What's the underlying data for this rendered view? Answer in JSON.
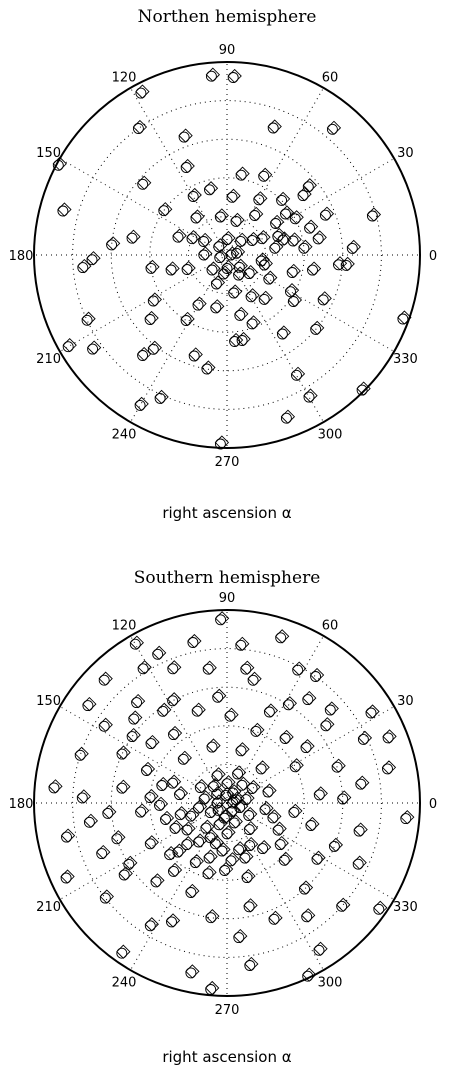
{
  "charts": [
    {
      "title": "Northen hemisphere",
      "xlabel": "right ascension α",
      "angle_labels": [
        "0",
        "30",
        "60",
        "90",
        "120",
        "150",
        "180",
        "210",
        "240",
        "270",
        "300",
        "330"
      ]
    },
    {
      "title": "Southern hemisphere",
      "xlabel": "right ascension α",
      "angle_labels": [
        "0",
        "30",
        "60",
        "90",
        "120",
        "150",
        "180",
        "210",
        "240",
        "270",
        "300",
        "330"
      ]
    }
  ],
  "chart_data": [
    {
      "type": "scatter",
      "title": "Northen hemisphere",
      "xlabel": "right ascension α",
      "angular_axis": {
        "unit": "degrees",
        "ticks": [
          0,
          30,
          60,
          90,
          120,
          150,
          180,
          210,
          240,
          270,
          300,
          330
        ]
      },
      "radial_grid": 5,
      "markers": [
        "circle",
        "diamond"
      ],
      "grid": true,
      "points": [
        [
          0,
          0.02
        ],
        [
          10,
          0.05
        ],
        [
          200,
          0.04
        ],
        [
          90,
          0.08
        ],
        [
          270,
          0.07
        ],
        [
          135,
          0.06
        ],
        [
          315,
          0.09
        ],
        [
          45,
          0.1
        ],
        [
          180,
          0.12
        ],
        [
          225,
          0.11
        ],
        [
          30,
          0.15
        ],
        [
          150,
          0.14
        ],
        [
          250,
          0.16
        ],
        [
          350,
          0.18
        ],
        [
          100,
          0.2
        ],
        [
          200,
          0.22
        ],
        [
          300,
          0.25
        ],
        [
          20,
          0.28
        ],
        [
          160,
          0.27
        ],
        [
          240,
          0.3
        ],
        [
          60,
          0.33
        ],
        [
          120,
          0.35
        ],
        [
          330,
          0.38
        ],
        [
          190,
          0.4
        ],
        [
          80,
          0.42
        ],
        [
          280,
          0.45
        ],
        [
          10,
          0.48
        ],
        [
          170,
          0.5
        ],
        [
          220,
          0.52
        ],
        [
          40,
          0.55
        ],
        [
          140,
          0.57
        ],
        [
          260,
          0.6
        ],
        [
          355,
          0.62
        ],
        [
          110,
          0.65
        ],
        [
          230,
          0.68
        ],
        [
          70,
          0.7
        ],
        [
          300,
          0.72
        ],
        [
          185,
          0.75
        ],
        [
          15,
          0.78
        ],
        [
          125,
          0.8
        ],
        [
          245,
          0.82
        ],
        [
          50,
          0.85
        ],
        [
          165,
          0.88
        ],
        [
          290,
          0.9
        ],
        [
          95,
          0.93
        ],
        [
          210,
          0.95
        ],
        [
          340,
          0.97
        ],
        [
          152,
          0.99
        ],
        [
          118,
          0.95
        ],
        [
          88,
          0.92
        ],
        [
          315,
          0.99
        ],
        [
          268,
          0.98
        ],
        [
          240,
          0.9
        ],
        [
          300,
          0.85
        ],
        [
          355,
          0.58
        ],
        [
          5,
          0.4
        ],
        [
          175,
          0.6
        ],
        [
          182,
          0.7
        ],
        [
          205,
          0.8
        ],
        [
          215,
          0.85
        ],
        [
          232,
          0.62
        ],
        [
          252,
          0.55
        ],
        [
          275,
          0.45
        ],
        [
          290,
          0.38
        ],
        [
          310,
          0.3
        ],
        [
          325,
          0.42
        ],
        [
          345,
          0.35
        ],
        [
          15,
          0.3
        ],
        [
          25,
          0.2
        ],
        [
          35,
          0.37
        ],
        [
          55,
          0.25
        ],
        [
          65,
          0.45
        ],
        [
          75,
          0.18
        ],
        [
          85,
          0.3
        ],
        [
          105,
          0.35
        ],
        [
          115,
          0.5
        ],
        [
          130,
          0.25
        ],
        [
          145,
          0.4
        ],
        [
          155,
          0.2
        ],
        [
          195,
          0.3
        ],
        [
          212,
          0.45
        ],
        [
          238,
          0.4
        ],
        [
          258,
          0.28
        ],
        [
          282,
          0.32
        ],
        [
          305,
          0.5
        ],
        [
          320,
          0.6
        ],
        [
          335,
          0.55
        ],
        [
          350,
          0.45
        ],
        [
          3,
          0.65
        ],
        [
          8,
          0.25
        ],
        [
          12,
          0.35
        ],
        [
          18,
          0.45
        ],
        [
          22,
          0.55
        ],
        [
          28,
          0.4
        ],
        [
          33,
          0.3
        ],
        [
          345,
          0.2
        ],
        [
          330,
          0.25
        ],
        [
          320,
          0.15
        ],
        [
          300,
          0.12
        ],
        [
          280,
          0.2
        ],
        [
          260,
          0.1
        ],
        [
          45,
          0.4
        ],
        [
          38,
          0.5
        ]
      ]
    },
    {
      "type": "scatter",
      "title": "Southern hemisphere",
      "xlabel": "right ascension α",
      "angular_axis": {
        "unit": "degrees",
        "ticks": [
          0,
          30,
          60,
          90,
          120,
          150,
          180,
          210,
          240,
          270,
          300,
          330
        ]
      },
      "radial_grid": 5,
      "markers": [
        "circle",
        "diamond"
      ],
      "grid": true,
      "points": [
        [
          0,
          0.03
        ],
        [
          20,
          0.05
        ],
        [
          60,
          0.06
        ],
        [
          100,
          0.04
        ],
        [
          140,
          0.07
        ],
        [
          180,
          0.05
        ],
        [
          220,
          0.06
        ],
        [
          260,
          0.08
        ],
        [
          300,
          0.05
        ],
        [
          340,
          0.07
        ],
        [
          10,
          0.1
        ],
        [
          50,
          0.12
        ],
        [
          90,
          0.1
        ],
        [
          130,
          0.11
        ],
        [
          170,
          0.12
        ],
        [
          210,
          0.1
        ],
        [
          250,
          0.12
        ],
        [
          290,
          0.11
        ],
        [
          330,
          0.13
        ],
        [
          30,
          0.15
        ],
        [
          70,
          0.16
        ],
        [
          110,
          0.15
        ],
        [
          150,
          0.16
        ],
        [
          190,
          0.15
        ],
        [
          230,
          0.17
        ],
        [
          270,
          0.16
        ],
        [
          310,
          0.18
        ],
        [
          350,
          0.2
        ],
        [
          15,
          0.22
        ],
        [
          45,
          0.25
        ],
        [
          75,
          0.28
        ],
        [
          105,
          0.3
        ],
        [
          135,
          0.32
        ],
        [
          165,
          0.35
        ],
        [
          195,
          0.33
        ],
        [
          225,
          0.36
        ],
        [
          255,
          0.38
        ],
        [
          285,
          0.4
        ],
        [
          315,
          0.42
        ],
        [
          345,
          0.45
        ],
        [
          5,
          0.48
        ],
        [
          35,
          0.5
        ],
        [
          65,
          0.52
        ],
        [
          95,
          0.55
        ],
        [
          125,
          0.58
        ],
        [
          155,
          0.6
        ],
        [
          185,
          0.62
        ],
        [
          215,
          0.65
        ],
        [
          245,
          0.68
        ],
        [
          275,
          0.7
        ],
        [
          305,
          0.72
        ],
        [
          335,
          0.75
        ],
        [
          25,
          0.78
        ],
        [
          55,
          0.8
        ],
        [
          85,
          0.82
        ],
        [
          115,
          0.85
        ],
        [
          145,
          0.88
        ],
        [
          175,
          0.9
        ],
        [
          205,
          0.92
        ],
        [
          235,
          0.95
        ],
        [
          265,
          0.97
        ],
        [
          295,
          0.99
        ],
        [
          325,
          0.96
        ],
        [
          355,
          0.93
        ],
        [
          120,
          0.95
        ],
        [
          132,
          0.7
        ],
        [
          142,
          0.5
        ],
        [
          158,
          0.45
        ],
        [
          172,
          0.55
        ],
        [
          188,
          0.72
        ],
        [
          198,
          0.6
        ],
        [
          208,
          0.45
        ],
        [
          218,
          0.8
        ],
        [
          228,
          0.55
        ],
        [
          238,
          0.75
        ],
        [
          248,
          0.5
        ],
        [
          258,
          0.9
        ],
        [
          262,
          0.6
        ],
        [
          278,
          0.85
        ],
        [
          282,
          0.55
        ],
        [
          292,
          0.65
        ],
        [
          302,
          0.9
        ],
        [
          312,
          0.6
        ],
        [
          318,
          0.8
        ],
        [
          328,
          0.55
        ],
        [
          338,
          0.6
        ],
        [
          348,
          0.7
        ],
        [
          8,
          0.7
        ],
        [
          18,
          0.6
        ],
        [
          28,
          0.4
        ],
        [
          38,
          0.65
        ],
        [
          48,
          0.45
        ],
        [
          58,
          0.6
        ],
        [
          68,
          0.4
        ],
        [
          78,
          0.65
        ],
        [
          88,
          0.45
        ],
        [
          98,
          0.7
        ],
        [
          108,
          0.5
        ],
        [
          118,
          0.6
        ],
        [
          128,
          0.45
        ],
        [
          138,
          0.65
        ],
        [
          148,
          0.75
        ],
        [
          162,
          0.8
        ],
        [
          178,
          0.75
        ],
        [
          192,
          0.85
        ],
        [
          202,
          0.7
        ],
        [
          212,
          0.6
        ],
        [
          222,
          0.4
        ],
        [
          232,
          0.45
        ],
        [
          242,
          0.35
        ],
        [
          252,
          0.3
        ],
        [
          268,
          0.35
        ],
        [
          288,
          0.3
        ],
        [
          298,
          0.25
        ],
        [
          308,
          0.3
        ],
        [
          322,
          0.35
        ],
        [
          332,
          0.3
        ],
        [
          342,
          0.25
        ],
        [
          352,
          0.35
        ],
        [
          2,
          0.6
        ],
        [
          12,
          0.85
        ],
        [
          22,
          0.9
        ],
        [
          32,
          0.88
        ],
        [
          42,
          0.72
        ],
        [
          52,
          0.68
        ],
        [
          62,
          0.78
        ],
        [
          72,
          0.9
        ],
        [
          82,
          0.7
        ],
        [
          92,
          0.95
        ],
        [
          102,
          0.85
        ],
        [
          112,
          0.75
        ],
        [
          122,
          0.82
        ],
        [
          135,
          0.9
        ],
        [
          145,
          0.6
        ],
        [
          160,
          0.3
        ],
        [
          170,
          0.25
        ],
        [
          176,
          0.4
        ],
        [
          182,
          0.35
        ],
        [
          186,
          0.45
        ],
        [
          194,
          0.25
        ],
        [
          200,
          0.2
        ],
        [
          206,
          0.3
        ],
        [
          214,
          0.25
        ],
        [
          226,
          0.3
        ],
        [
          234,
          0.25
        ],
        [
          244,
          0.2
        ],
        [
          254,
          0.22
        ],
        [
          264,
          0.25
        ],
        [
          274,
          0.3
        ],
        [
          284,
          0.25
        ]
      ]
    }
  ]
}
